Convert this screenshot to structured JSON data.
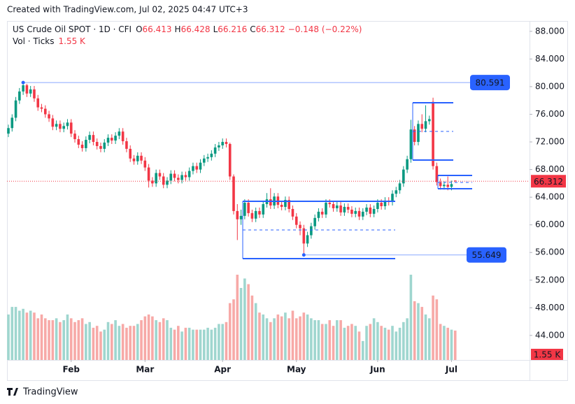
{
  "header": {
    "created": "Created with TradingView.com, Jul 02, 2025 04:47 UTC+3"
  },
  "footer": {
    "brand": "TradingView"
  },
  "chart_data": {
    "type": "candlestick",
    "title": "US Crude Oil SPOT · 1D · CFI",
    "ohlc_labels": [
      "O",
      "H",
      "L",
      "C"
    ],
    "change_label": "−0.148 (−0.22%)",
    "volume_title": "Vol · Ticks",
    "volume_last_label": "1.55 K",
    "levels": [
      80.591,
      55.649
    ],
    "up_color": "#089981",
    "down_color": "#f23645",
    "volume_up_color": "#9fd6cf",
    "volume_down_color": "#f7a9a7",
    "level_color": "#2962ff",
    "open": [
      73.2,
      74.0,
      75.5,
      78.0,
      79.3,
      80.2,
      79.0,
      79.6,
      78.3,
      77.0,
      76.8,
      76.0,
      75.4,
      74.2,
      74.6,
      73.9,
      74.3,
      74.8,
      73.2,
      72.4,
      71.6,
      71.1,
      72.3,
      73.0,
      72.0,
      71.4,
      71.0,
      71.9,
      72.6,
      72.2,
      72.9,
      73.5,
      72.1,
      71.0,
      69.6,
      69.2,
      70.0,
      69.3,
      68.3,
      66.4,
      66.0,
      67.5,
      67.0,
      65.8,
      66.4,
      67.4,
      66.8,
      66.5,
      67.2,
      66.9,
      67.8,
      68.5,
      68.0,
      69.0,
      69.6,
      69.8,
      70.3,
      71.2,
      71.5,
      72.0,
      71.7,
      67.0,
      62.0,
      60.8,
      61.3,
      63.2,
      61.7,
      60.9,
      62.0,
      61.5,
      63.0,
      63.7,
      62.8,
      64.1,
      62.9,
      62.6,
      63.6,
      62.3,
      61.2,
      60.0,
      59.5,
      57.3,
      58.5,
      59.8,
      61.0,
      61.9,
      61.5,
      63.2,
      63.0,
      62.4,
      62.8,
      61.8,
      62.6,
      62.2,
      61.6,
      62.0,
      61.2,
      61.9,
      62.5,
      61.6,
      62.3,
      63.2,
      62.7,
      63.5,
      63.3,
      64.5,
      65.0,
      66.0,
      68.0,
      69.5,
      73.8,
      72.0,
      74.6,
      73.9,
      75.0,
      77.8,
      68.5,
      66.2,
      65.6,
      65.8,
      65.5,
      66.413
    ],
    "high": [
      74.5,
      76.0,
      78.5,
      79.8,
      80.6,
      80.4,
      80.1,
      80.1,
      78.8,
      77.5,
      77.3,
      76.5,
      75.9,
      75.1,
      75.1,
      74.8,
      75.3,
      75.3,
      73.7,
      72.9,
      72.1,
      72.8,
      73.5,
      73.5,
      72.5,
      71.9,
      72.4,
      73.1,
      73.1,
      73.4,
      74.0,
      74.0,
      72.6,
      71.5,
      70.1,
      70.5,
      70.5,
      69.8,
      68.8,
      66.9,
      68.0,
      68.0,
      67.5,
      66.9,
      67.9,
      67.9,
      67.3,
      67.7,
      67.7,
      68.3,
      69.0,
      69.0,
      69.5,
      70.1,
      70.3,
      70.8,
      71.7,
      72.0,
      72.5,
      72.5,
      71.9,
      67.3,
      63.0,
      62.2,
      63.7,
      63.7,
      62.2,
      62.5,
      62.5,
      63.5,
      64.6,
      65.3,
      64.6,
      64.6,
      63.4,
      64.1,
      64.1,
      62.8,
      61.7,
      60.5,
      60.0,
      59.0,
      60.3,
      61.5,
      62.4,
      62.4,
      63.7,
      63.7,
      63.5,
      63.3,
      63.3,
      63.1,
      63.1,
      62.7,
      62.5,
      62.5,
      62.4,
      63.0,
      63.0,
      62.8,
      63.7,
      63.7,
      64.0,
      64.0,
      65.0,
      65.5,
      66.5,
      68.5,
      70.0,
      75.2,
      74.3,
      75.1,
      76.0,
      77.3,
      75.8,
      78.4,
      69.0,
      66.7,
      66.3,
      67.0,
      66.4,
      66.428
    ],
    "low": [
      72.7,
      73.5,
      75.0,
      77.5,
      78.8,
      78.5,
      78.5,
      77.8,
      76.5,
      76.3,
      75.5,
      74.9,
      73.7,
      73.7,
      73.4,
      73.4,
      73.8,
      72.7,
      71.9,
      71.1,
      70.6,
      70.6,
      71.8,
      71.5,
      70.9,
      70.5,
      70.5,
      71.4,
      71.7,
      71.7,
      72.4,
      71.6,
      70.5,
      69.1,
      68.7,
      68.7,
      68.8,
      67.8,
      65.4,
      65.5,
      65.5,
      66.5,
      65.3,
      65.3,
      65.9,
      66.3,
      66.0,
      66.0,
      66.4,
      66.4,
      67.3,
      67.5,
      67.5,
      68.5,
      69.1,
      69.3,
      69.8,
      70.7,
      71.0,
      71.2,
      66.5,
      61.5,
      57.8,
      60.0,
      60.8,
      61.2,
      60.4,
      60.4,
      61.0,
      61.0,
      62.5,
      62.3,
      62.3,
      62.4,
      62.1,
      62.1,
      61.8,
      60.7,
      59.5,
      58.5,
      55.6,
      56.8,
      58.0,
      59.3,
      60.5,
      61.0,
      61.0,
      62.5,
      61.9,
      61.9,
      61.3,
      61.3,
      61.7,
      61.1,
      61.1,
      60.7,
      60.7,
      61.4,
      61.1,
      61.1,
      61.8,
      62.2,
      62.2,
      62.8,
      62.8,
      64.0,
      64.5,
      65.5,
      67.5,
      69.0,
      71.5,
      71.5,
      73.4,
      73.4,
      74.5,
      68.0,
      65.7,
      65.1,
      65.1,
      65.0,
      65.0,
      66.216
    ],
    "close": [
      74.0,
      75.5,
      78.0,
      79.3,
      80.2,
      79.0,
      79.6,
      78.3,
      77.0,
      76.8,
      76.0,
      75.4,
      74.2,
      74.6,
      73.9,
      74.3,
      74.8,
      73.2,
      72.4,
      71.6,
      71.1,
      72.3,
      73.0,
      72.0,
      71.4,
      71.0,
      71.9,
      72.6,
      72.2,
      72.9,
      73.5,
      72.1,
      71.0,
      69.6,
      69.2,
      70.0,
      69.3,
      68.3,
      66.4,
      66.0,
      67.5,
      67.0,
      65.8,
      66.4,
      67.4,
      66.8,
      66.5,
      67.2,
      66.9,
      67.8,
      68.5,
      68.0,
      69.0,
      69.6,
      69.8,
      70.3,
      71.2,
      71.5,
      72.0,
      71.7,
      67.0,
      62.0,
      60.8,
      61.3,
      63.2,
      61.7,
      60.9,
      62.0,
      61.5,
      63.0,
      63.7,
      62.8,
      64.1,
      62.9,
      62.6,
      63.6,
      62.3,
      61.2,
      60.0,
      59.5,
      57.3,
      58.5,
      59.8,
      61.0,
      61.9,
      61.5,
      63.2,
      63.0,
      62.4,
      62.8,
      61.8,
      62.6,
      62.2,
      61.6,
      62.0,
      61.2,
      61.9,
      62.5,
      61.6,
      62.3,
      63.2,
      62.7,
      63.5,
      63.3,
      64.5,
      65.0,
      66.0,
      68.0,
      69.5,
      73.8,
      72.0,
      74.6,
      73.9,
      75.0,
      75.3,
      68.5,
      66.2,
      65.6,
      65.8,
      65.5,
      65.9,
      66.312
    ],
    "volume": [
      2400,
      2800,
      2800,
      2600,
      2700,
      2500,
      2600,
      2500,
      2200,
      2400,
      2200,
      2100,
      2100,
      2200,
      2000,
      2100,
      2400,
      2200,
      2000,
      2100,
      2200,
      1900,
      2000,
      1700,
      1800,
      1500,
      1600,
      2000,
      1900,
      2100,
      1800,
      1900,
      1700,
      1800,
      1800,
      1900,
      2100,
      2300,
      2400,
      2300,
      2100,
      2000,
      2200,
      2100,
      1700,
      1600,
      1800,
      1500,
      1700,
      1700,
      1600,
      1600,
      1600,
      1600,
      1700,
      1600,
      1700,
      1900,
      1900,
      2000,
      3000,
      3200,
      4500,
      3800,
      4300,
      4000,
      3400,
      3000,
      2500,
      2400,
      2200,
      2000,
      2200,
      2400,
      2300,
      2500,
      2200,
      2600,
      2200,
      2300,
      2500,
      2400,
      2200,
      2100,
      2100,
      1900,
      1900,
      2100,
      1800,
      2100,
      2100,
      1700,
      1800,
      1900,
      1800,
      1500,
      1000,
      1800,
      1900,
      2200,
      2000,
      1800,
      1700,
      1600,
      1800,
      1500,
      1700,
      2000,
      2200,
      4500,
      3100,
      3000,
      2800,
      2400,
      2200,
      3400,
      3200,
      1900,
      1800,
      1700,
      1600,
      1550
    ],
    "xlim": [
      -0.38,
      141.13
    ],
    "xticks": [
      {
        "value": 17,
        "label": "Feb"
      },
      {
        "value": 37,
        "label": "Mar"
      },
      {
        "value": 58,
        "label": "Apr"
      },
      {
        "value": 78,
        "label": "May"
      },
      {
        "value": 100,
        "label": "Jun"
      },
      {
        "value": 120,
        "label": "Jul"
      }
    ],
    "ylim": [
      40.45,
      89.5
    ],
    "yticks": [
      {
        "value": 44,
        "label": "44.000"
      },
      {
        "value": 48,
        "label": "48.000"
      },
      {
        "value": 52,
        "label": "52.000"
      },
      {
        "value": 56,
        "label": "56.000"
      },
      {
        "value": 60,
        "label": "60.000"
      },
      {
        "value": 64,
        "label": "64.000"
      },
      {
        "value": 68,
        "label": "68.000"
      },
      {
        "value": 72,
        "label": "72.000"
      },
      {
        "value": 76,
        "label": "76.000"
      },
      {
        "value": 80,
        "label": "80.000"
      },
      {
        "value": 84,
        "label": "84.000"
      },
      {
        "value": 88,
        "label": "88.000"
      }
    ]
  }
}
